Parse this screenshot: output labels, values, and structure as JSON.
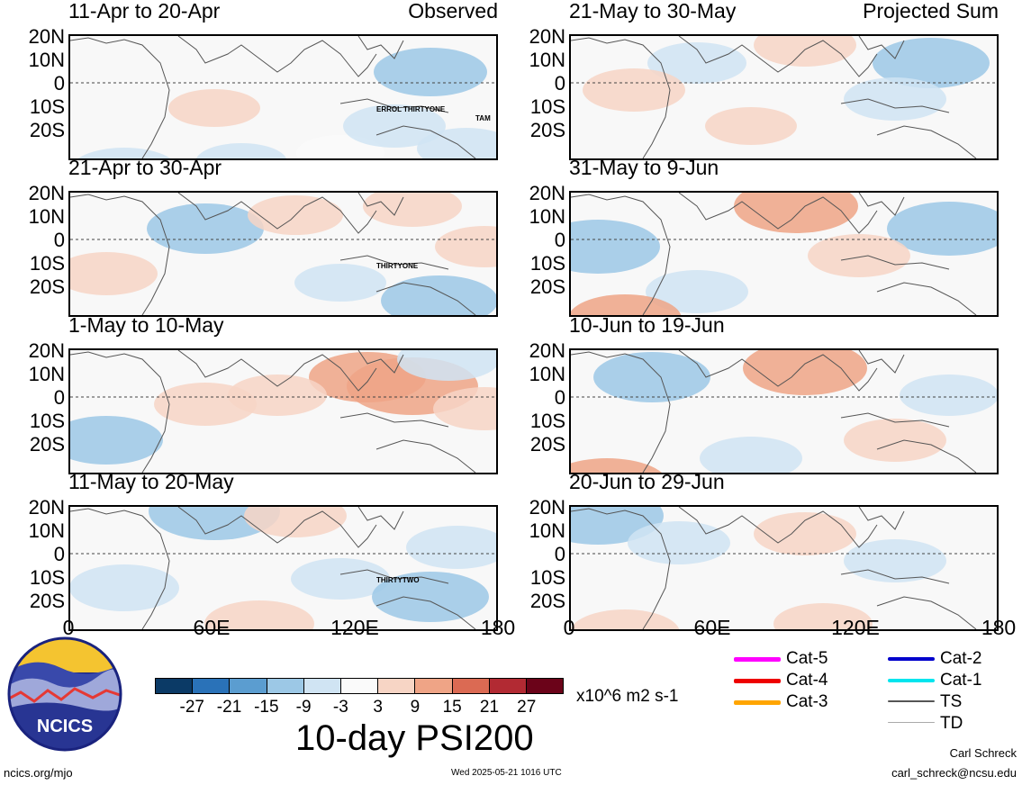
{
  "panels": [
    {
      "title": "11-Apr to 20-Apr",
      "label": "Observed",
      "storms": [
        "ERROL",
        "THIRTYONE",
        "TAM"
      ]
    },
    {
      "title": "21-Apr to 30-Apr",
      "label": "",
      "storms": [
        "THIRTYONE"
      ]
    },
    {
      "title": "1-May to 10-May",
      "label": "",
      "storms": []
    },
    {
      "title": "11-May to 20-May",
      "label": "",
      "storms": [
        "THIRTYTWO"
      ]
    },
    {
      "title": "21-May to 30-May",
      "label": "Projected Sum",
      "storms": []
    },
    {
      "title": "31-May to 9-Jun",
      "label": "",
      "storms": []
    },
    {
      "title": "10-Jun to 19-Jun",
      "label": "",
      "storms": []
    },
    {
      "title": "20-Jun to 29-Jun",
      "label": "",
      "storms": []
    }
  ],
  "y_labels": [
    "20N",
    "10N",
    "0",
    "10S",
    "20S"
  ],
  "x_labels": [
    "0",
    "60E",
    "120E",
    "180"
  ],
  "colorbar": {
    "colors": [
      "#0b3a66",
      "#2a72b8",
      "#5b9dd0",
      "#9cc8e6",
      "#d0e4f3",
      "#fafafa",
      "#f7d5c5",
      "#efa486",
      "#db6a53",
      "#b22a33",
      "#6b0319"
    ],
    "ticks": [
      "-27",
      "-21",
      "-15",
      "-9",
      "-3",
      "3",
      "9",
      "15",
      "21",
      "27"
    ],
    "units": "x10^6 m2 s-1"
  },
  "title": "10-day PSI200",
  "legend": [
    {
      "label": "Cat-5",
      "color": "#ff00ff",
      "weight": 5
    },
    {
      "label": "Cat-4",
      "color": "#ee0000",
      "weight": 5
    },
    {
      "label": "Cat-3",
      "color": "#ffa500",
      "weight": 5
    },
    {
      "label": "Cat-2",
      "color": "#0000cc",
      "weight": 4
    },
    {
      "label": "Cat-1",
      "color": "#00e5ee",
      "weight": 4
    },
    {
      "label": "TS",
      "color": "#555555",
      "weight": 2
    },
    {
      "label": "TD",
      "color": "#aaaaaa",
      "weight": 1
    }
  ],
  "logo_text": "NCICS",
  "footer": {
    "url": "ncics.org/mjo",
    "timestamp": "Wed 2025-05-21 1016 UTC",
    "author": "Carl Schreck",
    "email": "carl_schreck@ncsu.edu"
  }
}
